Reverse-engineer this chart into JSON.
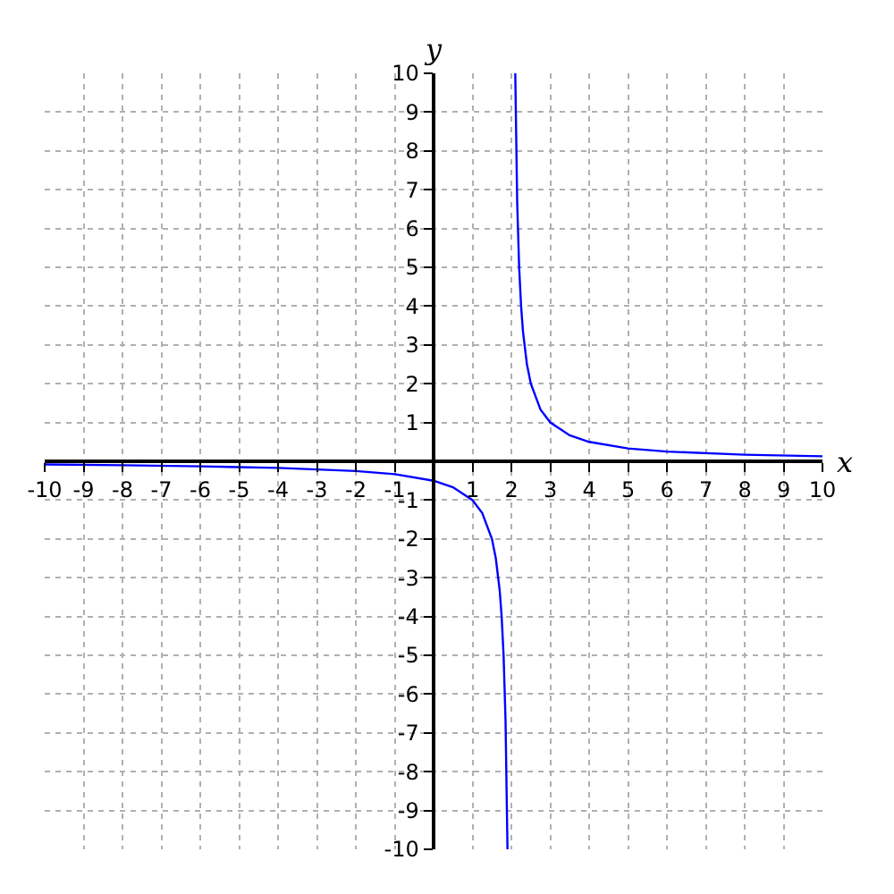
{
  "chart_data": {
    "type": "line",
    "xlabel": "x",
    "ylabel": "y",
    "series": [
      {
        "color": "#0000ff",
        "x": [
          -10,
          -8,
          -6,
          -4,
          -2,
          -1,
          0,
          0.5,
          1,
          1.25,
          1.5,
          1.6,
          1.7,
          1.75,
          1.8,
          1.85,
          1.9,
          2,
          2.1,
          2.15,
          2.2,
          2.25,
          2.3,
          2.4,
          2.5,
          2.75,
          3,
          3.5,
          4,
          5,
          6,
          8,
          10
        ],
        "values": [
          -0.08,
          -0.1,
          -0.13,
          -0.17,
          -0.25,
          -0.33,
          -0.5,
          -0.67,
          -1,
          -1.33,
          -2,
          -2.5,
          -3.33,
          -4,
          -5,
          -6.67,
          -10,
          null,
          10,
          6.67,
          5,
          4,
          3.33,
          2.5,
          2,
          1.33,
          1,
          0.67,
          0.5,
          0.33,
          0.25,
          0.17,
          0.13
        ]
      }
    ],
    "xlim": [
      -10,
      10
    ],
    "ylim": [
      -10,
      10
    ],
    "xticks": [
      -10,
      -9,
      -8,
      -7,
      -6,
      -5,
      -4,
      -3,
      -2,
      -1,
      1,
      2,
      3,
      4,
      5,
      6,
      7,
      8,
      9,
      10
    ],
    "yticks": [
      -10,
      -9,
      -8,
      -7,
      -6,
      -5,
      -4,
      -3,
      -2,
      -1,
      1,
      2,
      3,
      4,
      5,
      6,
      7,
      8,
      9,
      10
    ],
    "grid": true,
    "legend": false,
    "marker": "none",
    "line_style": "solid"
  }
}
